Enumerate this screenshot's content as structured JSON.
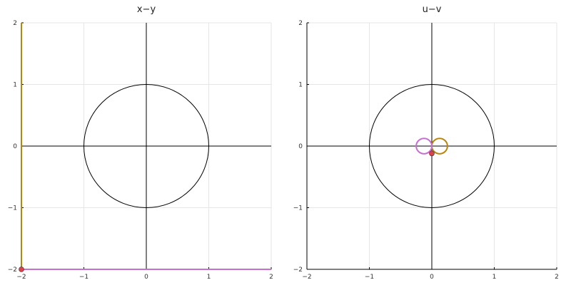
{
  "chart_data": [
    {
      "type": "line",
      "title": "x−y",
      "xlim": [
        -2,
        2
      ],
      "ylim": [
        -2,
        2
      ],
      "xticks": [
        -2,
        -1,
        0,
        1,
        2
      ],
      "yticks": [
        -2,
        -1,
        0,
        1,
        2
      ],
      "xtick_labels": [
        "−2",
        "−1",
        "0",
        "1",
        "2"
      ],
      "ytick_labels": [
        "−2",
        "−1",
        "0",
        "1",
        "2"
      ],
      "grid": true,
      "legend": "none",
      "unit_circle": {
        "center": [
          0,
          0
        ],
        "radius": 1,
        "color": "#000000"
      },
      "axis_lines": {
        "x": 0,
        "y": 0,
        "color": "#000000"
      },
      "series": [
        {
          "kind": "segment",
          "from": [
            -2,
            -2
          ],
          "to": [
            -2,
            2
          ],
          "color": "#B8860B"
        },
        {
          "kind": "segment",
          "from": [
            -2,
            -2
          ],
          "to": [
            2,
            -2
          ],
          "color": "#C76FD0"
        }
      ],
      "points": [
        {
          "x": -2,
          "y": -2,
          "color": "#E0404A"
        }
      ]
    },
    {
      "type": "line",
      "title": "u−v",
      "xlim": [
        -2,
        2
      ],
      "ylim": [
        -2,
        2
      ],
      "xticks": [
        -2,
        -1,
        0,
        1,
        2
      ],
      "yticks": [
        -2,
        -1,
        0,
        1,
        2
      ],
      "xtick_labels": [
        "−2",
        "−1",
        "0",
        "1",
        "2"
      ],
      "ytick_labels": [
        "−2",
        "−1",
        "0",
        "1",
        "2"
      ],
      "grid": true,
      "legend": "none",
      "unit_circle": {
        "center": [
          0,
          0
        ],
        "radius": 1,
        "color": "#000000"
      },
      "axis_lines": {
        "x": 0,
        "y": 0,
        "color": "#000000"
      },
      "series": [
        {
          "kind": "circle",
          "center": [
            0.125,
            0
          ],
          "radius": 0.125,
          "color": "#B8860B"
        },
        {
          "kind": "circle",
          "center": [
            -0.125,
            0
          ],
          "radius": 0.125,
          "color": "#C76FD0"
        }
      ],
      "points": [
        {
          "x": 0,
          "y": -0.12,
          "color": "#E0404A"
        }
      ]
    }
  ]
}
